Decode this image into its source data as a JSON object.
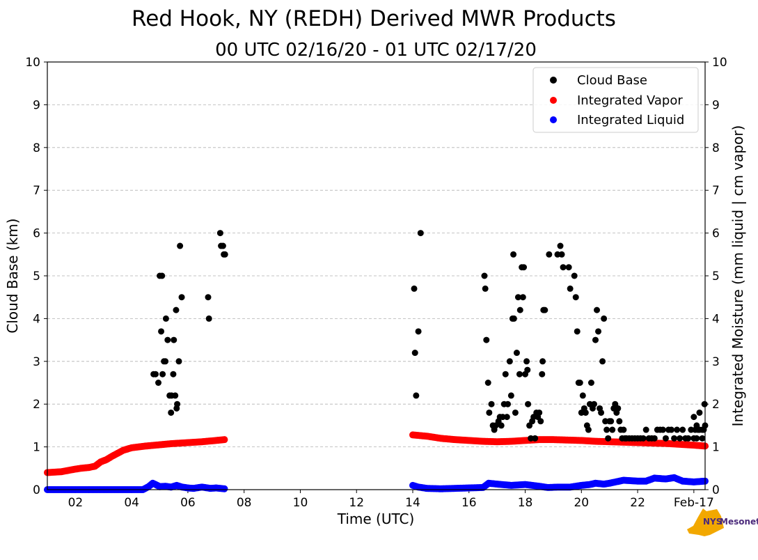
{
  "chart_data": {
    "type": "scatter",
    "title": "Red Hook, NY (REDH) Derived MWR Products",
    "subtitle": "00 UTC 02/16/20 - 01 UTC 02/17/20",
    "xlabel": "Time (UTC)",
    "ylabel_left": "Cloud Base (km)",
    "ylabel_right": "Integrated Moisture (mm liquid | cm vapor)",
    "xlim": [
      1.0,
      24.4
    ],
    "ylim": [
      0,
      10
    ],
    "x_ticks": [
      {
        "x": 2,
        "label": "02"
      },
      {
        "x": 4,
        "label": "04"
      },
      {
        "x": 6,
        "label": "06"
      },
      {
        "x": 8,
        "label": "08"
      },
      {
        "x": 10,
        "label": "10"
      },
      {
        "x": 12,
        "label": "12"
      },
      {
        "x": 14,
        "label": "14"
      },
      {
        "x": 16,
        "label": "16"
      },
      {
        "x": 18,
        "label": "18"
      },
      {
        "x": 20,
        "label": "20"
      },
      {
        "x": 22,
        "label": "22"
      },
      {
        "x": 24,
        "label": "Feb-17"
      }
    ],
    "y_ticks": [
      0,
      1,
      2,
      3,
      4,
      5,
      6,
      7,
      8,
      9,
      10
    ],
    "grid": "horizontal dashed",
    "legend_position": "top-right",
    "colors": {
      "cloud_base": "#000000",
      "vapor": "#ff0000",
      "liquid": "#0000ff"
    },
    "series": [
      {
        "name": "Cloud Base",
        "axis": "left",
        "points": [
          [
            4.78,
            2.7
          ],
          [
            4.85,
            2.7
          ],
          [
            4.95,
            2.5
          ],
          [
            5.0,
            5.0
          ],
          [
            5.05,
            3.7
          ],
          [
            5.08,
            5.0
          ],
          [
            5.1,
            2.7
          ],
          [
            5.15,
            3.0
          ],
          [
            5.2,
            3.0
          ],
          [
            5.22,
            4.0
          ],
          [
            5.28,
            3.5
          ],
          [
            5.35,
            2.2
          ],
          [
            5.4,
            1.8
          ],
          [
            5.42,
            2.2
          ],
          [
            5.48,
            2.7
          ],
          [
            5.5,
            3.5
          ],
          [
            5.55,
            2.2
          ],
          [
            5.58,
            4.2
          ],
          [
            5.6,
            1.9
          ],
          [
            5.62,
            2.0
          ],
          [
            5.68,
            3.0
          ],
          [
            5.72,
            5.7
          ],
          [
            5.78,
            4.5
          ],
          [
            6.72,
            4.5
          ],
          [
            6.75,
            4.0
          ],
          [
            7.15,
            6.0
          ],
          [
            7.18,
            5.7
          ],
          [
            7.25,
            5.7
          ],
          [
            7.28,
            5.5
          ],
          [
            7.32,
            5.5
          ],
          [
            14.05,
            4.7
          ],
          [
            14.08,
            3.2
          ],
          [
            14.12,
            2.2
          ],
          [
            14.2,
            3.7
          ],
          [
            14.28,
            6.0
          ],
          [
            16.55,
            5.0
          ],
          [
            16.58,
            4.7
          ],
          [
            16.62,
            3.5
          ],
          [
            16.68,
            2.5
          ],
          [
            16.72,
            1.8
          ],
          [
            16.8,
            2.0
          ],
          [
            16.85,
            1.5
          ],
          [
            16.9,
            1.4
          ],
          [
            16.95,
            1.5
          ],
          [
            17.05,
            1.6
          ],
          [
            17.1,
            1.7
          ],
          [
            17.15,
            1.5
          ],
          [
            17.2,
            1.7
          ],
          [
            17.25,
            2.0
          ],
          [
            17.3,
            2.7
          ],
          [
            17.35,
            1.7
          ],
          [
            17.38,
            2.0
          ],
          [
            17.45,
            3.0
          ],
          [
            17.5,
            2.2
          ],
          [
            17.55,
            4.0
          ],
          [
            17.58,
            5.5
          ],
          [
            17.6,
            4.0
          ],
          [
            17.65,
            1.8
          ],
          [
            17.7,
            3.2
          ],
          [
            17.75,
            4.5
          ],
          [
            17.8,
            2.7
          ],
          [
            17.82,
            4.2
          ],
          [
            17.88,
            5.2
          ],
          [
            17.92,
            4.5
          ],
          [
            17.95,
            5.2
          ],
          [
            18.0,
            2.7
          ],
          [
            18.05,
            3.0
          ],
          [
            18.08,
            2.8
          ],
          [
            18.1,
            2.0
          ],
          [
            18.15,
            1.5
          ],
          [
            18.2,
            1.2
          ],
          [
            18.25,
            1.6
          ],
          [
            18.3,
            1.7
          ],
          [
            18.35,
            1.2
          ],
          [
            18.4,
            1.8
          ],
          [
            18.45,
            1.7
          ],
          [
            18.5,
            1.8
          ],
          [
            18.55,
            1.6
          ],
          [
            18.6,
            2.7
          ],
          [
            18.62,
            3.0
          ],
          [
            18.65,
            4.2
          ],
          [
            18.7,
            4.2
          ],
          [
            18.85,
            5.5
          ],
          [
            19.15,
            5.5
          ],
          [
            19.25,
            5.7
          ],
          [
            19.3,
            5.5
          ],
          [
            19.35,
            5.2
          ],
          [
            19.55,
            5.2
          ],
          [
            19.6,
            4.7
          ],
          [
            19.75,
            5.0
          ],
          [
            19.8,
            4.5
          ],
          [
            19.85,
            3.7
          ],
          [
            19.9,
            2.5
          ],
          [
            19.95,
            2.5
          ],
          [
            20.0,
            1.8
          ],
          [
            20.05,
            2.2
          ],
          [
            20.1,
            1.9
          ],
          [
            20.15,
            1.8
          ],
          [
            20.2,
            1.5
          ],
          [
            20.25,
            1.4
          ],
          [
            20.3,
            2.0
          ],
          [
            20.35,
            2.5
          ],
          [
            20.4,
            1.9
          ],
          [
            20.45,
            2.0
          ],
          [
            20.5,
            3.5
          ],
          [
            20.55,
            4.2
          ],
          [
            20.6,
            3.7
          ],
          [
            20.65,
            1.9
          ],
          [
            20.7,
            1.8
          ],
          [
            20.75,
            3.0
          ],
          [
            20.8,
            4.0
          ],
          [
            20.85,
            1.6
          ],
          [
            20.9,
            1.4
          ],
          [
            20.95,
            1.2
          ],
          [
            21.0,
            1.6
          ],
          [
            21.05,
            1.6
          ],
          [
            21.1,
            1.4
          ],
          [
            21.15,
            1.9
          ],
          [
            21.2,
            2.0
          ],
          [
            21.25,
            1.8
          ],
          [
            21.3,
            1.9
          ],
          [
            21.35,
            1.6
          ],
          [
            21.4,
            1.4
          ],
          [
            21.45,
            1.2
          ],
          [
            21.5,
            1.4
          ],
          [
            21.55,
            1.2
          ],
          [
            21.6,
            1.2
          ],
          [
            21.7,
            1.2
          ],
          [
            21.8,
            1.2
          ],
          [
            21.9,
            1.2
          ],
          [
            22.0,
            1.2
          ],
          [
            22.1,
            1.2
          ],
          [
            22.2,
            1.2
          ],
          [
            22.3,
            1.4
          ],
          [
            22.4,
            1.2
          ],
          [
            22.5,
            1.2
          ],
          [
            22.6,
            1.2
          ],
          [
            22.7,
            1.4
          ],
          [
            22.8,
            1.4
          ],
          [
            22.9,
            1.4
          ],
          [
            23.0,
            1.2
          ],
          [
            23.1,
            1.4
          ],
          [
            23.2,
            1.4
          ],
          [
            23.3,
            1.2
          ],
          [
            23.4,
            1.4
          ],
          [
            23.5,
            1.2
          ],
          [
            23.6,
            1.4
          ],
          [
            23.7,
            1.2
          ],
          [
            23.8,
            1.2
          ],
          [
            23.9,
            1.4
          ],
          [
            24.0,
            1.2
          ],
          [
            24.05,
            1.4
          ],
          [
            24.1,
            1.2
          ],
          [
            24.2,
            1.4
          ],
          [
            24.3,
            1.2
          ],
          [
            24.35,
            1.4
          ],
          [
            24.4,
            1.5
          ],
          [
            24.2,
            1.8
          ],
          [
            24.0,
            1.7
          ],
          [
            24.1,
            1.5
          ],
          [
            24.3,
            1.4
          ],
          [
            24.38,
            2.0
          ],
          [
            24.15,
            1.4
          ]
        ]
      },
      {
        "name": "Integrated Vapor",
        "axis": "right",
        "segments": [
          [
            [
              1.0,
              0.4
            ],
            [
              1.5,
              0.42
            ],
            [
              2.0,
              0.48
            ],
            [
              2.2,
              0.5
            ],
            [
              2.5,
              0.52
            ],
            [
              2.7,
              0.55
            ],
            [
              2.9,
              0.65
            ],
            [
              3.1,
              0.7
            ],
            [
              3.3,
              0.78
            ],
            [
              3.5,
              0.85
            ],
            [
              3.7,
              0.92
            ],
            [
              4.0,
              0.98
            ],
            [
              4.5,
              1.02
            ],
            [
              5.0,
              1.05
            ],
            [
              5.5,
              1.08
            ],
            [
              6.0,
              1.1
            ],
            [
              6.5,
              1.12
            ],
            [
              7.0,
              1.15
            ],
            [
              7.3,
              1.17
            ]
          ],
          [
            [
              14.0,
              1.28
            ],
            [
              14.5,
              1.25
            ],
            [
              15.0,
              1.2
            ],
            [
              15.5,
              1.17
            ],
            [
              16.0,
              1.15
            ],
            [
              16.5,
              1.13
            ],
            [
              17.0,
              1.12
            ],
            [
              17.5,
              1.13
            ],
            [
              18.0,
              1.15
            ],
            [
              18.5,
              1.17
            ],
            [
              19.0,
              1.17
            ],
            [
              19.5,
              1.16
            ],
            [
              20.0,
              1.15
            ],
            [
              20.5,
              1.13
            ],
            [
              21.0,
              1.12
            ],
            [
              21.5,
              1.11
            ],
            [
              22.0,
              1.1
            ],
            [
              22.5,
              1.09
            ],
            [
              23.0,
              1.08
            ],
            [
              23.5,
              1.06
            ],
            [
              24.0,
              1.04
            ],
            [
              24.4,
              1.02
            ]
          ]
        ]
      },
      {
        "name": "Integrated Liquid",
        "axis": "right",
        "segments": [
          [
            [
              1.0,
              0.0
            ],
            [
              1.5,
              0.0
            ],
            [
              2.0,
              0.0
            ],
            [
              2.5,
              0.0
            ],
            [
              3.0,
              0.0
            ],
            [
              3.5,
              0.0
            ],
            [
              4.0,
              0.0
            ],
            [
              4.4,
              0.0
            ],
            [
              4.6,
              0.07
            ],
            [
              4.75,
              0.15
            ],
            [
              4.85,
              0.12
            ],
            [
              5.0,
              0.07
            ],
            [
              5.2,
              0.08
            ],
            [
              5.4,
              0.06
            ],
            [
              5.6,
              0.1
            ],
            [
              5.8,
              0.06
            ],
            [
              6.0,
              0.04
            ],
            [
              6.2,
              0.03
            ],
            [
              6.5,
              0.06
            ],
            [
              6.8,
              0.03
            ],
            [
              7.0,
              0.04
            ],
            [
              7.3,
              0.02
            ]
          ],
          [
            [
              14.0,
              0.1
            ],
            [
              14.2,
              0.06
            ],
            [
              14.5,
              0.03
            ],
            [
              15.0,
              0.02
            ],
            [
              15.5,
              0.03
            ],
            [
              16.0,
              0.04
            ],
            [
              16.5,
              0.05
            ],
            [
              16.7,
              0.15
            ],
            [
              17.0,
              0.13
            ],
            [
              17.5,
              0.1
            ],
            [
              18.0,
              0.12
            ],
            [
              18.5,
              0.08
            ],
            [
              18.8,
              0.05
            ],
            [
              19.2,
              0.06
            ],
            [
              19.6,
              0.06
            ],
            [
              20.0,
              0.1
            ],
            [
              20.3,
              0.12
            ],
            [
              20.5,
              0.15
            ],
            [
              20.8,
              0.13
            ],
            [
              21.0,
              0.15
            ],
            [
              21.5,
              0.22
            ],
            [
              22.0,
              0.2
            ],
            [
              22.3,
              0.2
            ],
            [
              22.6,
              0.27
            ],
            [
              23.0,
              0.25
            ],
            [
              23.3,
              0.28
            ],
            [
              23.6,
              0.2
            ],
            [
              24.0,
              0.18
            ],
            [
              24.4,
              0.2
            ]
          ]
        ]
      }
    ]
  },
  "logo": {
    "line1": "NYS",
    "line2": "Mesonet"
  }
}
